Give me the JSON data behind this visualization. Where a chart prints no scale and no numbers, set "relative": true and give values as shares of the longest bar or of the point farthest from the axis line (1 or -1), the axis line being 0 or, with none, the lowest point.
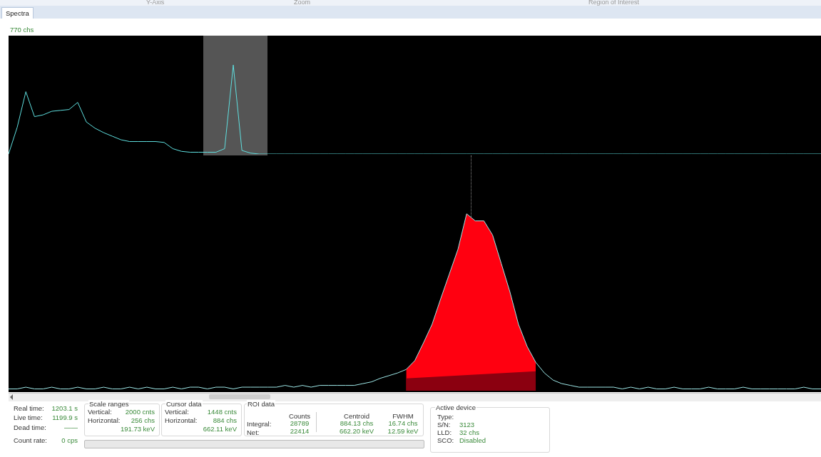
{
  "chart_data": [
    {
      "type": "line",
      "title": "Spectra",
      "subtitle": "770 chs",
      "annotations": [
        "Y-Axis",
        "Zoom",
        "Region of Interest"
      ],
      "relative": true,
      "categories": [
        null,
        null,
        null,
        null,
        null,
        null,
        null,
        null,
        null,
        null,
        null,
        null,
        null,
        null,
        null,
        null,
        null,
        null,
        null,
        null,
        null,
        null,
        null,
        null,
        null,
        null,
        null,
        null,
        null,
        null,
        null,
        null,
        null,
        null,
        null,
        null,
        null,
        null,
        null,
        null,
        null,
        null,
        null,
        null,
        null,
        null,
        null,
        null,
        null,
        null,
        null,
        null,
        null,
        null,
        null,
        null,
        null,
        null,
        null,
        null,
        null,
        null,
        null,
        null,
        null,
        null,
        null,
        null,
        null,
        null,
        null,
        null,
        null,
        null,
        null,
        null,
        null,
        null,
        null,
        null,
        null,
        null,
        null,
        null,
        null,
        null,
        null,
        null,
        null,
        null,
        null,
        null,
        null,
        null,
        null
      ],
      "series": [
        {
          "type": "line",
          "color": "#5fe0e0",
          "values": [
            0,
            0.3,
            0.7,
            0.42,
            0.44,
            0.48,
            0.49,
            0.5,
            0.58,
            0.36,
            0.29,
            0.24,
            0.2,
            0.16,
            0.14,
            0.14,
            0.14,
            0.14,
            0.13,
            0.06,
            0.03,
            0.02,
            0.02,
            0.02,
            0.02,
            0.06,
            1,
            0.04,
            0.01,
            0,
            0,
            0,
            0,
            0,
            0,
            0,
            0,
            0,
            0,
            0,
            0,
            0,
            0,
            0,
            0,
            0,
            0,
            0,
            0,
            0,
            0,
            0,
            0,
            0,
            0,
            0,
            0,
            0,
            0,
            0,
            0,
            0,
            0,
            0,
            0,
            0,
            0,
            0,
            0,
            0,
            0,
            0,
            0,
            0,
            0,
            0,
            0,
            0,
            0,
            0,
            0,
            0,
            0,
            0,
            0,
            0,
            0,
            0,
            0,
            0,
            0,
            0,
            0,
            0,
            0
          ]
        }
      ]
    },
    {
      "type": "line",
      "relative": true,
      "categories": [
        null,
        null,
        null,
        null,
        null,
        null,
        null,
        null,
        null,
        null,
        null,
        null,
        null,
        null,
        null,
        null,
        null,
        null,
        null,
        null,
        null,
        null,
        null,
        null,
        null,
        null,
        null,
        null,
        null,
        null,
        null,
        null,
        null,
        null,
        null,
        null,
        null,
        null,
        null,
        null,
        null,
        null,
        null,
        null,
        null,
        null,
        null,
        null,
        null,
        null,
        null,
        null,
        null,
        null,
        null,
        null,
        null,
        null,
        null,
        null,
        null,
        null,
        null,
        null,
        null,
        null,
        null,
        null,
        null,
        null,
        null,
        null,
        null,
        null,
        null,
        null,
        null,
        null,
        null,
        null,
        null,
        null,
        null,
        null,
        null,
        null,
        null,
        null,
        null,
        null,
        null,
        null,
        null,
        null,
        null
      ],
      "series": [
        {
          "type": "line",
          "color": "#9ee8e8",
          "values": [
            0.01,
            0.01,
            0.02,
            0.01,
            0.01,
            0.02,
            0.01,
            0.01,
            0.02,
            0.01,
            0.01,
            0.02,
            0.01,
            0.01,
            0.02,
            0.01,
            0.02,
            0.01,
            0.01,
            0.02,
            0.01,
            0.02,
            0.02,
            0.01,
            0.02,
            0.02,
            0.01,
            0.02,
            0.02,
            0.02,
            0.02,
            0.02,
            0.03,
            0.02,
            0.03,
            0.02,
            0.03,
            0.03,
            0.03,
            0.03,
            0.03,
            0.04,
            0.05,
            0.07,
            0.085,
            0.1,
            0.12,
            0.17,
            0.27,
            0.375,
            0.52,
            0.66,
            0.8,
            1,
            0.96,
            0.96,
            0.88,
            0.72,
            0.56,
            0.375,
            0.25,
            0.16,
            0.1,
            0.06,
            0.04,
            0.03,
            0.02,
            0.02,
            0.02,
            0.02,
            0.02,
            0.01,
            0.02,
            0.01,
            0.02,
            0.01,
            0.01,
            0.02,
            0.01,
            0.01,
            0.01,
            0.02,
            0.01,
            0.01,
            0.01,
            0.02,
            0.01,
            0.01,
            0.01,
            0.01,
            0.01,
            0.01,
            0.02,
            0.01,
            0.01
          ]
        },
        {
          "type": "area",
          "color": "#ff0010",
          "values": [
            null,
            null,
            null,
            null,
            null,
            null,
            null,
            null,
            null,
            null,
            null,
            null,
            null,
            null,
            null,
            null,
            null,
            null,
            null,
            null,
            null,
            null,
            null,
            null,
            null,
            null,
            null,
            null,
            null,
            null,
            null,
            null,
            null,
            null,
            null,
            null,
            null,
            null,
            null,
            null,
            null,
            null,
            null,
            null,
            null,
            null,
            0.12,
            0.17,
            0.27,
            0.375,
            0.52,
            0.66,
            0.8,
            1,
            0.96,
            0.96,
            0.88,
            0.72,
            0.56,
            0.375,
            0.25,
            0.16,
            null,
            null,
            null,
            null,
            null,
            null,
            null,
            null,
            null,
            null,
            null,
            null,
            null,
            null,
            null,
            null,
            null,
            null,
            null,
            null,
            null,
            null,
            null,
            null,
            null,
            null,
            null,
            null,
            null,
            null,
            null,
            null,
            null
          ]
        },
        {
          "type": "area",
          "color": "#8b0010",
          "values": [
            null,
            null,
            null,
            null,
            null,
            null,
            null,
            null,
            null,
            null,
            null,
            null,
            null,
            null,
            null,
            null,
            null,
            null,
            null,
            null,
            null,
            null,
            null,
            null,
            null,
            null,
            null,
            null,
            null,
            null,
            null,
            null,
            null,
            null,
            null,
            null,
            null,
            null,
            null,
            null,
            null,
            null,
            null,
            null,
            null,
            null,
            0.07,
            null,
            null,
            null,
            null,
            null,
            null,
            null,
            null,
            null,
            null,
            null,
            null,
            null,
            null,
            0.11,
            null,
            null,
            null,
            null,
            null,
            null,
            null,
            null,
            null,
            null,
            null,
            null,
            null,
            null,
            null,
            null,
            null,
            null,
            null,
            null,
            null,
            null,
            null,
            null,
            null,
            null,
            null,
            null,
            null,
            null,
            null,
            null,
            null
          ]
        }
      ]
    },
    {
      "type": "other",
      "annotations": [
        "Real time:",
        "1203.1 s",
        "Live time:",
        "1199.9 s",
        "Dead time:",
        "——",
        "Count rate:",
        "0 cps",
        "Scale ranges",
        "Vertical:",
        "2000 cnts",
        "Horizontal:",
        "256 chs",
        "191.73 keV",
        "Cursor data",
        "Vertical:",
        "1448 cnts",
        "Horizontal:",
        "884 chs",
        "662.11 keV",
        "ROI data",
        "Integral:",
        "Net:",
        "Counts",
        "28789",
        "22414",
        "Centroid",
        "884.13 chs",
        "662.20 keV",
        "FWHM",
        "16.74 chs",
        "12.59 keV",
        "Active device",
        "Type:",
        "S/N:",
        "3123",
        "LLD:",
        "32 chs",
        "SCO:",
        "Disabled"
      ]
    }
  ]
}
